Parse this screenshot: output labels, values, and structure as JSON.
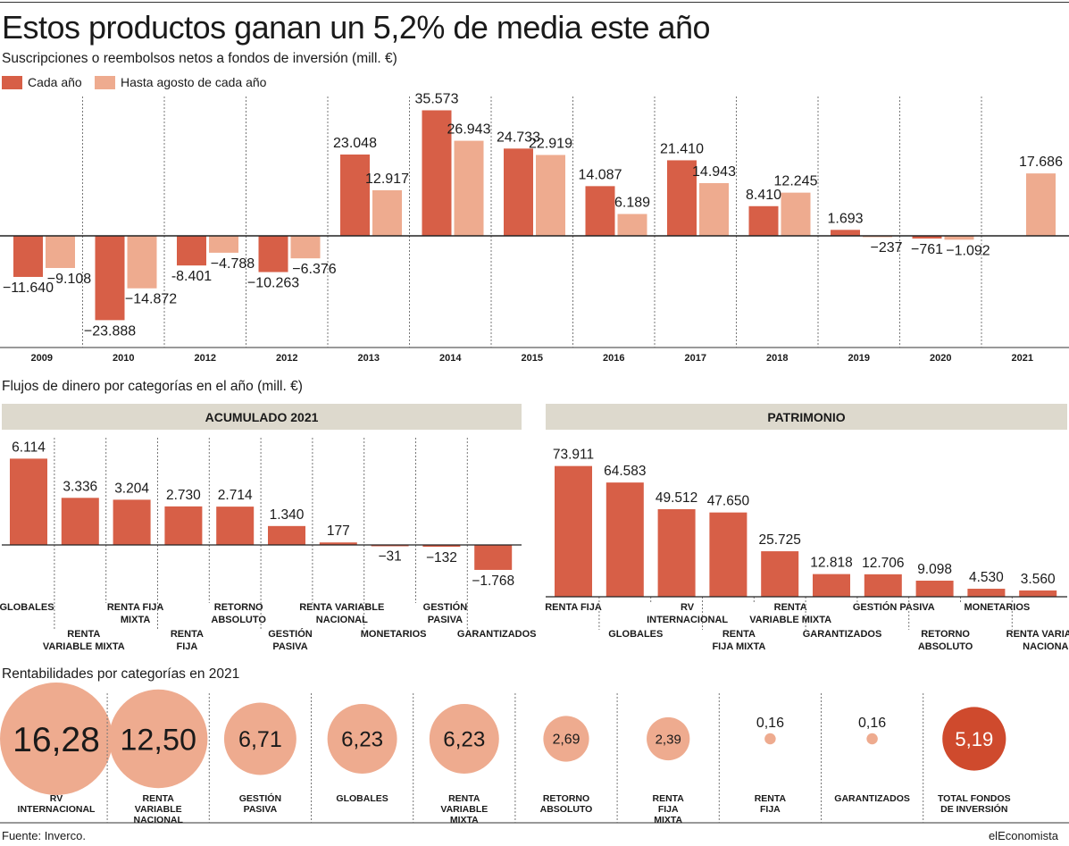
{
  "header": {
    "title": "Estos productos ganan un 5,2% de media este año",
    "subtitle": "Suscripciones o reembolsos netos a fondos de inversión (mill. €)",
    "legend": [
      {
        "label": "Cada año",
        "color": "#d75f47"
      },
      {
        "label": "Hasta agosto de cada año",
        "color": "#eeab8f"
      }
    ]
  },
  "sections": {
    "flows_title": "Flujos de dinero por categorías en el año (mill. €)",
    "returns_title": "Rentabilidades por categorías en 2021",
    "acumulado_band": "ACUMULADO 2021",
    "patrimonio_band": "PATRIMONIO"
  },
  "footer": {
    "source": "Fuente: Inverco.",
    "brand": "elEconomista"
  },
  "colors": {
    "dark": "#d75f47",
    "light": "#eeab8f",
    "total": "#cf4a2d",
    "band": "#ddd9cd"
  },
  "chart_data": [
    {
      "id": "yearly",
      "type": "bar",
      "categories": [
        "2009",
        "2010",
        "2012",
        "2012",
        "2013",
        "2014",
        "2015",
        "2016",
        "2017",
        "2018",
        "2019",
        "2020",
        "2021"
      ],
      "series": [
        {
          "name": "Cada año",
          "values": [
            -11640,
            -23888,
            -8401,
            -10263,
            23048,
            35573,
            24733,
            14087,
            21410,
            8410,
            1693,
            -761,
            null
          ],
          "labels": [
            "−11.640",
            "−23.888",
            "-8.401",
            "−10.263",
            "23.048",
            "35.573",
            "24.733",
            "14.087",
            "21.410",
            "8.410",
            "1.693",
            "−761",
            ""
          ]
        },
        {
          "name": "Hasta agosto de cada año",
          "values": [
            -9108,
            -14872,
            -4788,
            -6376,
            12917,
            26943,
            22919,
            6189,
            14943,
            12245,
            -237,
            -1092,
            17686
          ],
          "labels": [
            "−9.108",
            "−14.872",
            "−4.788",
            "−6.376",
            "12.917",
            "26.943",
            "22.919",
            "6.189",
            "14.943",
            "12.245",
            "−237",
            "−1.092",
            "17.686"
          ]
        }
      ],
      "grid": "vertical dotted separators"
    },
    {
      "id": "acumulado",
      "type": "bar",
      "title": "ACUMULADO 2021",
      "categories": [
        "GLOBALES",
        "RENTA VARIABLE MIXTA",
        "RENTA FIJA MIXTA",
        "RENTA FIJA",
        "RETORNO ABSOLUTO",
        "GESTIÓN PASIVA",
        "RENTA VARIABLE NACIONAL",
        "MONETARIOS",
        "GESTIÓN PASIVA",
        "GARANTIZADOS"
      ],
      "category_lines": [
        [
          "GLOBALES"
        ],
        [
          "RENTA",
          "VARIABLE MIXTA"
        ],
        [
          "RENTA FIJA",
          "MIXTA"
        ],
        [
          "RENTA",
          "FIJA"
        ],
        [
          "RETORNO",
          "ABSOLUTO"
        ],
        [
          "GESTIÓN",
          "PASIVA"
        ],
        [
          "RENTA VARIABLE",
          "NACIONAL"
        ],
        [
          "MONETARIOS"
        ],
        [
          "GESTIÓN",
          "PASIVA"
        ],
        [
          "GARANTIZADOS"
        ]
      ],
      "values": [
        6114,
        3336,
        3204,
        2730,
        2714,
        1340,
        177,
        -31,
        -132,
        -1768
      ],
      "labels": [
        "6.114",
        "3.336",
        "3.204",
        "2.730",
        "2.714",
        "1.340",
        "177",
        "−31",
        "−132",
        "−1.768"
      ]
    },
    {
      "id": "patrimonio",
      "type": "bar",
      "title": "PATRIMONIO",
      "categories": [
        "RENTA FIJA",
        "GLOBALES",
        "RV INTERNACIONAL",
        "RENTA FIJA MIXTA",
        "RENTA VARIABLE MIXTA",
        "GARANTIZADOS",
        "GESTIÓN PASIVA",
        "RETORNO ABSOLUTO",
        "MONETARIOS",
        "RENTA VARIABLE NACIONAL"
      ],
      "category_lines": [
        [
          "RENTA FIJA"
        ],
        [
          "GLOBALES"
        ],
        [
          "RV",
          "INTERNACIONAL"
        ],
        [
          "RENTA",
          "FIJA MIXTA"
        ],
        [
          "RENTA",
          "VARIABLE MIXTA"
        ],
        [
          "GARANTIZADOS"
        ],
        [
          "GESTIÓN PASIVA"
        ],
        [
          "RETORNO",
          "ABSOLUTO"
        ],
        [
          "MONETARIOS"
        ],
        [
          "RENTA VARIABLE",
          "NACIONAL"
        ]
      ],
      "values": [
        73911,
        64583,
        49512,
        47650,
        25725,
        12818,
        12706,
        9098,
        4530,
        3560
      ],
      "labels": [
        "73.911",
        "64.583",
        "49.512",
        "47.650",
        "25.725",
        "12.818",
        "12.706",
        "9.098",
        "4.530",
        "3.560"
      ]
    },
    {
      "id": "rentabilidades",
      "type": "scatter",
      "categories": [
        "RV INTERNACIONAL",
        "RENTA VARIABLE NACIONAL",
        "GESTIÓN PASIVA",
        "GLOBALES",
        "RENTA VARIABLE MIXTA",
        "RETORNO ABSOLUTO",
        "RENTA FIJA MIXTA",
        "RENTA FIJA",
        "GARANTIZADOS",
        "TOTAL FONDOS DE INVERSIÓN"
      ],
      "category_lines": [
        [
          "RV",
          "INTERNACIONAL"
        ],
        [
          "RENTA",
          "VARIABLE",
          "NACIONAL"
        ],
        [
          "GESTIÓN",
          "PASIVA"
        ],
        [
          "GLOBALES"
        ],
        [
          "RENTA",
          "VARIABLE",
          "MIXTA"
        ],
        [
          "RETORNO",
          "ABSOLUTO"
        ],
        [
          "RENTA",
          "FIJA",
          "MIXTA"
        ],
        [
          "RENTA",
          "FIJA"
        ],
        [
          "GARANTIZADOS"
        ],
        [
          "TOTAL FONDOS",
          "DE INVERSIÓN"
        ]
      ],
      "values": [
        16.28,
        12.5,
        6.71,
        6.23,
        6.23,
        2.69,
        2.39,
        0.16,
        0.16,
        5.19
      ],
      "labels": [
        "16,28",
        "12,50",
        "6,71",
        "6,23",
        "6,23",
        "2,69",
        "2,39",
        "0,16",
        "0,16",
        "5,19"
      ],
      "encoding": "bubble area proportional to return (%)"
    }
  ]
}
